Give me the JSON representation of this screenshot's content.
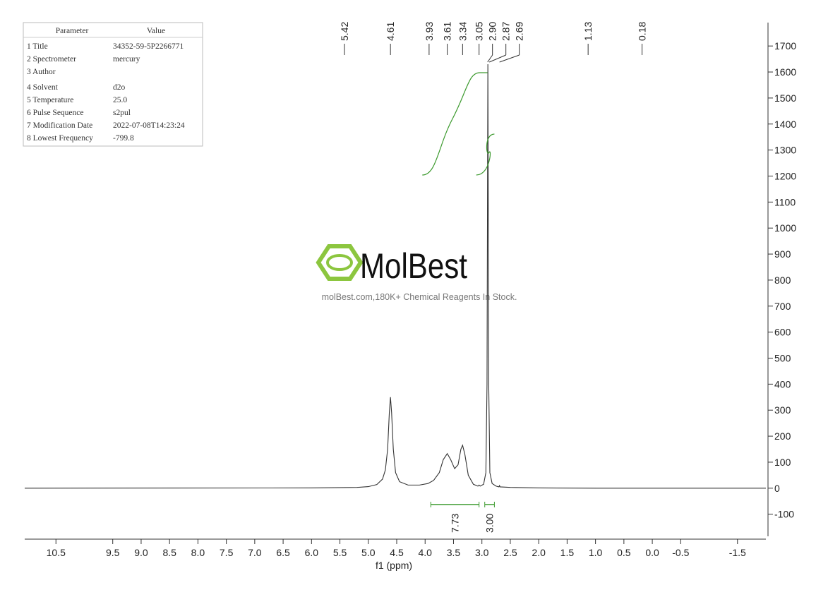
{
  "parameters": {
    "header": [
      "Parameter",
      "Value"
    ],
    "rows": [
      [
        "1 Title",
        "34352-59-5P2266771"
      ],
      [
        "2 Spectrometer",
        "mercury"
      ],
      [
        "3 Author"
      ],
      [
        "4 Solvent",
        "d2o"
      ],
      [
        "5 Temperature",
        "25.0"
      ],
      [
        "6 Pulse Sequence",
        "s2pul"
      ],
      [
        "7 Modification Date",
        "2022-07-08T14:23:24"
      ],
      [
        "8 Lowest Frequency",
        "-799.8"
      ]
    ]
  },
  "watermark": {
    "brand": "MolBest",
    "tagline": "molBest.com,180K+ Chemical Reagents In Stock."
  },
  "chart_data": {
    "type": "line",
    "x_label": "f1 (ppm)",
    "color": "#333333",
    "integral_color": "#3c9a2e",
    "x": [
      11.05,
      6.0,
      5.2,
      5.0,
      4.85,
      4.75,
      4.7,
      4.66,
      4.63,
      4.61,
      4.59,
      4.56,
      4.52,
      4.45,
      4.3,
      4.1,
      3.95,
      3.85,
      3.75,
      3.68,
      3.61,
      3.55,
      3.48,
      3.42,
      3.37,
      3.34,
      3.3,
      3.24,
      3.15,
      3.07,
      3.05,
      3.03,
      2.97,
      2.93,
      2.91,
      2.895,
      2.88,
      2.86,
      2.82,
      2.75,
      2.7,
      2.69,
      2.68,
      2.5,
      2.0,
      1.0,
      -2.0
    ],
    "values": [
      0,
      1,
      3,
      6,
      14,
      35,
      70,
      150,
      290,
      350,
      290,
      150,
      60,
      25,
      12,
      12,
      18,
      30,
      60,
      110,
      133,
      110,
      75,
      90,
      150,
      165,
      130,
      50,
      15,
      8,
      12,
      8,
      15,
      60,
      400,
      1630,
      400,
      60,
      18,
      8,
      5,
      10,
      5,
      3,
      1,
      0,
      0
    ],
    "xlim": [
      11.05,
      -2.0
    ],
    "ylim": [
      -185,
      1790
    ],
    "xticks": [
      10.5,
      {
        "value": 9.5,
        "label": "9.5"
      },
      {
        "value": 9.0,
        "label": "9.0"
      },
      8.5,
      {
        "value": 8.0,
        "label": "8.0"
      },
      7.5,
      {
        "value": 7.0,
        "label": "7.0"
      },
      6.5,
      {
        "value": 6.0,
        "label": "6.0"
      },
      5.5,
      {
        "value": 5.0,
        "label": "5.0"
      },
      4.5,
      {
        "value": 4.0,
        "label": "4.0"
      },
      3.5,
      {
        "value": 3.0,
        "label": "3.0"
      },
      2.5,
      {
        "value": 2.0,
        "label": "2.0"
      },
      1.5,
      {
        "value": 1.0,
        "label": "1.0"
      },
      0.5,
      {
        "value": 0.0,
        "label": "0.0"
      },
      -0.5,
      -1.5
    ],
    "yticks": [
      -100,
      0,
      100,
      200,
      300,
      400,
      500,
      600,
      700,
      800,
      900,
      1000,
      1100,
      1200,
      1300,
      1400,
      1500,
      1600,
      1700
    ],
    "peaks": [
      {
        "value": 5.42,
        "label": "5.42"
      },
      {
        "value": 4.61,
        "label": "4.61"
      },
      {
        "value": 3.93,
        "label": "3.93"
      },
      {
        "value": 3.61,
        "label": "3.61"
      },
      {
        "value": 3.34,
        "label": "3.34"
      },
      {
        "value": 3.05,
        "label": "3.05"
      },
      {
        "value": 2.9,
        "label": "2.90"
      },
      {
        "value": 2.87,
        "label": "2.87"
      },
      {
        "value": 2.69,
        "label": "2.69"
      },
      {
        "value": 1.13,
        "label": "1.13"
      },
      {
        "value": 0.18,
        "label": "0.18"
      }
    ],
    "integrals": [
      {
        "range": [
          3.9,
          3.05
        ],
        "value": 7.73,
        "label": "7.73"
      },
      {
        "range": [
          2.95,
          2.78
        ],
        "value": 3.0,
        "label": "3.00"
      }
    ]
  }
}
